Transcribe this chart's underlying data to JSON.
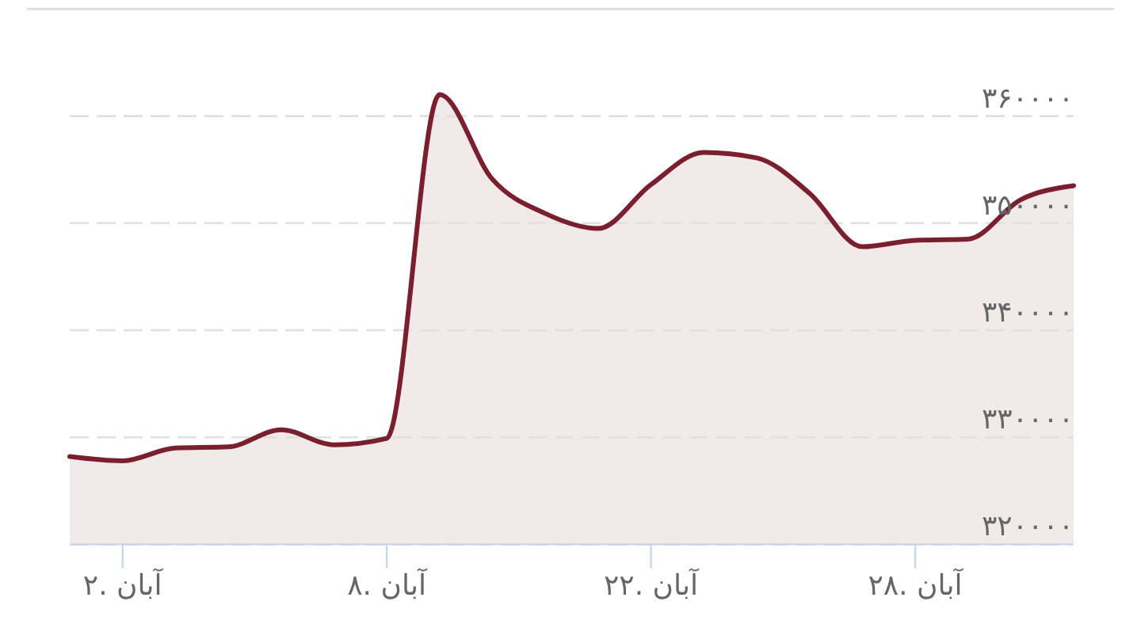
{
  "chart_data": {
    "type": "area",
    "color": "#7a1f2e",
    "grid": "y",
    "line_style": "solid",
    "categories": [
      null,
      "۲. آبان",
      null,
      null,
      null,
      null,
      "۸. آبان",
      null,
      null,
      null,
      null,
      "۲۲. آبان",
      null,
      null,
      null,
      null,
      "۲۸. آبان",
      null,
      null,
      null
    ],
    "values": [
      328200,
      327800,
      329000,
      329100,
      330700,
      329300,
      329900,
      362000,
      354100,
      350900,
      349500,
      353600,
      356600,
      356100,
      352800,
      347800,
      348400,
      348500,
      352200,
      353500
    ],
    "ylim": [
      320000,
      370000
    ],
    "yticks": [
      {
        "value": 320000,
        "label": "۳۲۰۰۰۰"
      },
      {
        "value": 330000,
        "label": "۳۳۰۰۰۰"
      },
      {
        "value": 340000,
        "label": "۳۴۰۰۰۰"
      },
      {
        "value": 350000,
        "label": "۳۵۰۰۰۰"
      },
      {
        "value": 360000,
        "label": "۳۶۰۰۰۰"
      }
    ]
  }
}
